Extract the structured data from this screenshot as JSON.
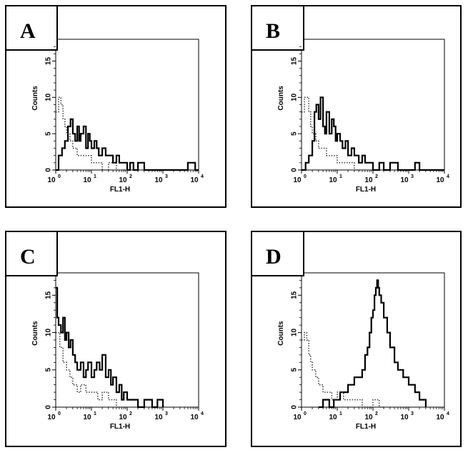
{
  "colors": {
    "ink": "#000000",
    "background": "#ffffff",
    "dotted": "#333333"
  },
  "chart_data": [
    {
      "type": "line",
      "panel": "A",
      "xlabel": "FL1-H",
      "ylabel": "Counts",
      "x_scale": "log",
      "xlim": [
        1,
        10000
      ],
      "ylim": [
        0,
        18
      ],
      "x_ticks": [
        "10^0",
        "10^1",
        "10^2",
        "10^3",
        "10^4"
      ],
      "y_ticks": [
        "0",
        "5",
        "10",
        "15"
      ],
      "series": [
        {
          "style": "solid",
          "x": [
            1.0,
            1.2,
            1.5,
            1.8,
            2.2,
            2.6,
            3.0,
            3.5,
            4.0,
            4.5,
            5.0,
            6.0,
            7.0,
            8.0,
            9.0,
            10,
            12,
            14,
            16,
            20,
            25,
            30,
            40,
            50,
            60,
            80,
            100,
            120,
            150,
            200,
            300,
            500,
            1000,
            2000,
            4500,
            5000,
            7000,
            8000,
            10000
          ],
          "y": [
            0,
            2,
            3,
            4,
            6,
            7,
            5,
            4,
            6,
            4,
            5,
            6,
            3,
            5,
            4,
            3,
            4,
            3,
            2,
            3,
            2,
            2,
            1,
            2,
            1,
            1,
            0,
            1,
            0,
            1,
            0,
            0,
            0,
            0,
            0,
            1,
            1,
            0,
            0
          ]
        },
        {
          "style": "dotted",
          "x": [
            1.0,
            1.2,
            1.4,
            1.6,
            1.8,
            2.0,
            2.5,
            3.0,
            4.0,
            5.0,
            7.0,
            10,
            15,
            20,
            30,
            50,
            100
          ],
          "y": [
            8,
            10,
            9,
            7,
            6,
            5,
            4,
            3,
            2,
            2,
            2,
            1,
            1,
            0,
            1,
            0,
            0
          ]
        }
      ]
    },
    {
      "type": "line",
      "panel": "B",
      "xlabel": "FL1-H",
      "ylabel": "Counts",
      "x_scale": "log",
      "xlim": [
        1,
        10000
      ],
      "ylim": [
        0,
        18
      ],
      "x_ticks": [
        "10^0",
        "10^1",
        "10^2",
        "10^3",
        "10^4"
      ],
      "y_ticks": [
        "0",
        "5",
        "10",
        "15"
      ],
      "series": [
        {
          "style": "solid",
          "x": [
            1.0,
            1.3,
            1.6,
            2.0,
            2.3,
            2.6,
            3.0,
            3.4,
            4.0,
            4.5,
            5.0,
            6.0,
            7.0,
            8.0,
            9.0,
            10,
            12,
            14,
            17,
            20,
            25,
            30,
            40,
            50,
            60,
            80,
            100,
            150,
            200,
            300,
            500,
            1000,
            1500,
            2000,
            10000
          ],
          "y": [
            0,
            1,
            2,
            4,
            8,
            9,
            7,
            10,
            6,
            5,
            8,
            5,
            7,
            6,
            4,
            5,
            4,
            3,
            4,
            2,
            3,
            2,
            1,
            2,
            1,
            1,
            0,
            1,
            0,
            1,
            0,
            0,
            1,
            0,
            0
          ]
        },
        {
          "style": "dotted",
          "x": [
            1.0,
            1.2,
            1.4,
            1.6,
            1.8,
            2.0,
            2.5,
            3.0,
            4.0,
            5.0,
            7.0,
            10,
            15,
            20,
            30,
            50
          ],
          "y": [
            8,
            10,
            10,
            8,
            6,
            5,
            4,
            3,
            3,
            2,
            2,
            1,
            1,
            1,
            0,
            0
          ]
        }
      ]
    },
    {
      "type": "line",
      "panel": "C",
      "xlabel": "FL1-H",
      "ylabel": "Counts",
      "x_scale": "log",
      "xlim": [
        1,
        10000
      ],
      "ylim": [
        0,
        18
      ],
      "x_ticks": [
        "10^0",
        "10^1",
        "10^2",
        "10^3",
        "10^4"
      ],
      "y_ticks": [
        "0",
        "5",
        "10",
        "15"
      ],
      "series": [
        {
          "style": "solid",
          "x": [
            1.0,
            1.1,
            1.2,
            1.4,
            1.6,
            1.8,
            2.0,
            2.3,
            2.6,
            3.0,
            3.5,
            4.0,
            5.0,
            6.0,
            7.0,
            8.0,
            10,
            12,
            14,
            17,
            20,
            25,
            30,
            35,
            40,
            50,
            60,
            70,
            80,
            100,
            150,
            200,
            300,
            500,
            700,
            1000
          ],
          "y": [
            16,
            12,
            11,
            10,
            12,
            9,
            10,
            8,
            9,
            7,
            6,
            5,
            6,
            4,
            5,
            6,
            4,
            5,
            6,
            5,
            7,
            4,
            5,
            3,
            4,
            2,
            3,
            1,
            2,
            1,
            1,
            0,
            1,
            0,
            1,
            0
          ]
        },
        {
          "style": "dotted",
          "x": [
            1.0,
            1.3,
            1.6,
            2.0,
            2.5,
            3.0,
            4.0,
            5.0,
            7.0,
            10,
            15,
            20,
            30,
            50,
            100
          ],
          "y": [
            10,
            8,
            6,
            5,
            4,
            3,
            2,
            3,
            2,
            2,
            1,
            2,
            1,
            0,
            0
          ]
        }
      ]
    },
    {
      "type": "line",
      "panel": "D",
      "xlabel": "FL1-H",
      "ylabel": "Counts",
      "x_scale": "log",
      "xlim": [
        1,
        10000
      ],
      "ylim": [
        0,
        18
      ],
      "x_ticks": [
        "10^0",
        "10^1",
        "10^2",
        "10^3",
        "10^4"
      ],
      "y_ticks": [
        "0",
        "5",
        "10",
        "15"
      ],
      "series": [
        {
          "style": "solid",
          "x": [
            3,
            4,
            5,
            6,
            8,
            10,
            12,
            15,
            20,
            25,
            30,
            40,
            50,
            60,
            70,
            80,
            90,
            100,
            110,
            120,
            130,
            140,
            150,
            170,
            200,
            250,
            300,
            400,
            500,
            700,
            1000,
            1500,
            2000,
            3000
          ],
          "y": [
            0,
            1,
            1,
            0,
            1,
            1,
            2,
            2,
            3,
            3,
            4,
            4,
            5,
            7,
            8,
            10,
            12,
            13,
            15,
            16,
            17,
            16,
            15,
            14,
            12,
            10,
            8,
            6,
            5,
            4,
            3,
            2,
            1,
            0
          ]
        },
        {
          "style": "dotted",
          "x": [
            1.0,
            1.2,
            1.4,
            1.6,
            1.8,
            2.0,
            2.5,
            3.0,
            4.0,
            5.0,
            7.0,
            10,
            15,
            20,
            30,
            50,
            100,
            150,
            200
          ],
          "y": [
            9,
            10,
            9,
            7,
            6,
            5,
            4,
            3,
            2,
            2,
            1,
            2,
            1,
            1,
            1,
            0,
            1,
            0,
            0
          ]
        }
      ]
    }
  ]
}
